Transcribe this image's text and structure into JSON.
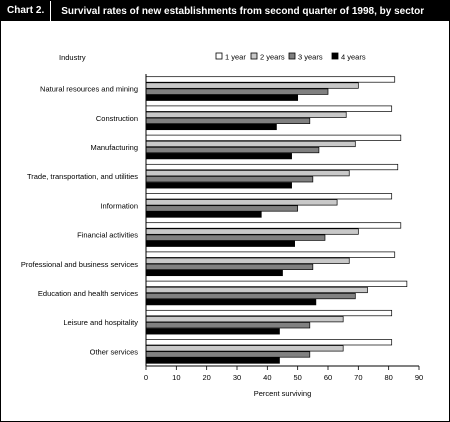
{
  "header": {
    "chart_label": "Chart 2.",
    "title": "Survival rates of new establishments from second quarter of 1998, by sector"
  },
  "colors": {
    "1 year": "#ffffff",
    "2 years": "#c8c8c8",
    "3 years": "#808080",
    "4 years": "#000000"
  },
  "chart_data": {
    "type": "bar",
    "orientation": "horizontal",
    "title": "Survival rates of new establishments from second quarter of 1998, by sector",
    "category_axis_label": "Industry",
    "xlabel": "Percent surviving",
    "xlim": [
      0,
      90
    ],
    "xticks": [
      0,
      10,
      20,
      30,
      40,
      50,
      60,
      70,
      80,
      90
    ],
    "legend_position": "top-right",
    "grid": false,
    "categories": [
      "Natural resources and mining",
      "Construction",
      "Manufacturing",
      "Trade, transportation, and utilities",
      "Information",
      "Financial activities",
      "Professional and business services",
      "Education and health services",
      "Leisure and hospitality",
      "Other services"
    ],
    "series": [
      {
        "name": "1 year",
        "values": [
          82,
          81,
          84,
          83,
          81,
          84,
          82,
          86,
          81,
          81
        ]
      },
      {
        "name": "2 years",
        "values": [
          70,
          66,
          69,
          67,
          63,
          70,
          67,
          73,
          65,
          65
        ]
      },
      {
        "name": "3 years",
        "values": [
          60,
          54,
          57,
          55,
          50,
          59,
          55,
          69,
          54,
          54
        ]
      },
      {
        "name": "4 years",
        "values": [
          50,
          43,
          48,
          48,
          38,
          49,
          45,
          56,
          44,
          44
        ]
      }
    ]
  }
}
